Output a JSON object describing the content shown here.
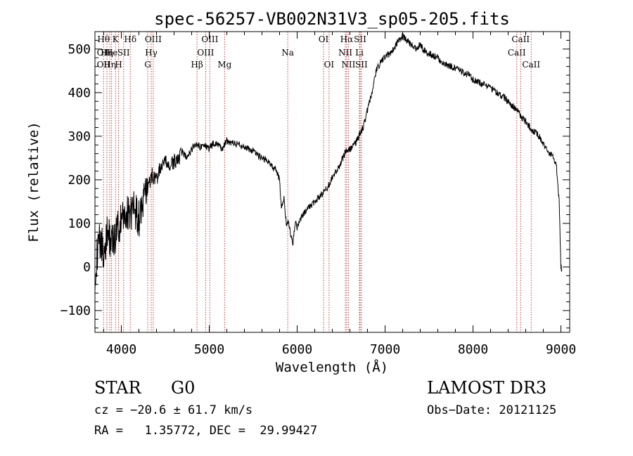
{
  "chart_data": {
    "type": "line",
    "title": "spec-56257-VB002N31V3_sp05-205.fits",
    "xlabel": "Wavelength (Å)",
    "ylabel": "Flux (relative)",
    "xlim": [
      3700,
      9100
    ],
    "ylim": [
      -150,
      540
    ],
    "xticks": [
      4000,
      5000,
      6000,
      7000,
      8000,
      9000
    ],
    "yticks": [
      -100,
      0,
      100,
      200,
      300,
      400,
      500
    ],
    "xtick_labels": [
      "4000",
      "5000",
      "6000",
      "7000",
      "8000",
      "9000"
    ],
    "ytick_labels": [
      "−100",
      "0",
      "100",
      "200",
      "300",
      "400",
      "500"
    ],
    "series": [
      {
        "name": "flux",
        "x": [
          3700,
          3750,
          3800,
          3850,
          3900,
          3950,
          4000,
          4050,
          4100,
          4150,
          4200,
          4250,
          4300,
          4350,
          4400,
          4450,
          4500,
          4550,
          4600,
          4650,
          4700,
          4750,
          4800,
          4850,
          4900,
          4950,
          5000,
          5050,
          5100,
          5150,
          5200,
          5250,
          5300,
          5350,
          5400,
          5450,
          5500,
          5550,
          5600,
          5650,
          5700,
          5750,
          5800,
          5820,
          5850,
          5880,
          5900,
          5950,
          5980,
          6000,
          6050,
          6100,
          6150,
          6200,
          6250,
          6300,
          6350,
          6400,
          6450,
          6500,
          6550,
          6600,
          6650,
          6700,
          6750,
          6800,
          6850,
          6900,
          6950,
          7000,
          7050,
          7100,
          7150,
          7200,
          7250,
          7300,
          7350,
          7400,
          7450,
          7500,
          7550,
          7600,
          7650,
          7700,
          7750,
          7800,
          7850,
          7900,
          7950,
          8000,
          8050,
          8100,
          8150,
          8200,
          8250,
          8300,
          8350,
          8400,
          8450,
          8500,
          8550,
          8600,
          8650,
          8700,
          8750,
          8800,
          8850,
          8900,
          8950,
          8980,
          9000,
          9010
        ],
        "y": [
          -10,
          60,
          40,
          80,
          50,
          90,
          100,
          120,
          130,
          130,
          110,
          150,
          180,
          210,
          200,
          230,
          240,
          230,
          240,
          250,
          260,
          250,
          270,
          285,
          275,
          280,
          270,
          285,
          280,
          270,
          290,
          285,
          282,
          280,
          275,
          270,
          265,
          255,
          250,
          245,
          235,
          225,
          200,
          140,
          160,
          90,
          105,
          50,
          110,
          90,
          115,
          130,
          140,
          150,
          160,
          170,
          185,
          205,
          220,
          240,
          265,
          270,
          280,
          300,
          320,
          360,
          400,
          450,
          470,
          480,
          490,
          500,
          520,
          530,
          520,
          510,
          500,
          510,
          495,
          490,
          485,
          480,
          470,
          465,
          460,
          455,
          450,
          445,
          440,
          430,
          425,
          420,
          415,
          410,
          405,
          395,
          390,
          380,
          370,
          360,
          345,
          335,
          320,
          310,
          300,
          280,
          265,
          255,
          230,
          150,
          0,
          -5
        ]
      }
    ],
    "lines": [
      {
        "x": 3798,
        "labels": [
          {
            "text": "Hθ",
            "row": 0
          },
          {
            "text": "OII",
            "row": 1
          },
          {
            "text": "OII",
            "row": 2
          }
        ]
      },
      {
        "x": 3836,
        "labels": [
          {
            "text": "Hη",
            "row": 1
          }
        ]
      },
      {
        "x": 3869,
        "labels": [
          {
            "text": "Hη",
            "row": 2
          }
        ]
      },
      {
        "x": 3889,
        "labels": [
          {
            "text": "He",
            "row": 1
          }
        ]
      },
      {
        "x": 3934,
        "labels": [
          {
            "text": "K",
            "row": 0
          }
        ]
      },
      {
        "x": 3969,
        "labels": [
          {
            "text": "H",
            "row": 2
          }
        ]
      },
      {
        "x": 4026,
        "labels": [
          {
            "text": "SII",
            "row": 1
          }
        ]
      },
      {
        "x": 4102,
        "labels": [
          {
            "text": "Hδ",
            "row": 0
          }
        ]
      },
      {
        "x": 4300,
        "labels": [
          {
            "text": "G",
            "row": 2
          }
        ]
      },
      {
        "x": 4340,
        "labels": [
          {
            "text": "Hγ",
            "row": 1
          }
        ]
      },
      {
        "x": 4363,
        "labels": [
          {
            "text": "OIII",
            "row": 0
          }
        ]
      },
      {
        "x": 4861,
        "labels": [
          {
            "text": "Hβ",
            "row": 2
          }
        ]
      },
      {
        "x": 4959,
        "labels": [
          {
            "text": "OIII",
            "row": 1
          }
        ]
      },
      {
        "x": 5007,
        "labels": [
          {
            "text": "OIII",
            "row": 0
          }
        ]
      },
      {
        "x": 5175,
        "labels": [
          {
            "text": "Mg",
            "row": 2
          }
        ]
      },
      {
        "x": 5893,
        "labels": [
          {
            "text": "Na",
            "row": 1
          }
        ]
      },
      {
        "x": 6300,
        "labels": [
          {
            "text": "OI",
            "row": 0
          }
        ]
      },
      {
        "x": 6363,
        "labels": [
          {
            "text": "OI",
            "row": 2
          }
        ]
      },
      {
        "x": 6548,
        "labels": [
          {
            "text": "NII",
            "row": 1
          }
        ]
      },
      {
        "x": 6563,
        "labels": [
          {
            "text": "Hα",
            "row": 0
          }
        ]
      },
      {
        "x": 6583,
        "labels": [
          {
            "text": "NII",
            "row": 2
          }
        ]
      },
      {
        "x": 6708,
        "labels": [
          {
            "text": "Li",
            "row": 1
          }
        ]
      },
      {
        "x": 6716,
        "labels": [
          {
            "text": "SII",
            "row": 0
          }
        ]
      },
      {
        "x": 6731,
        "labels": [
          {
            "text": "SII",
            "row": 2
          }
        ]
      },
      {
        "x": 8498,
        "labels": [
          {
            "text": "CaII",
            "row": 1
          }
        ]
      },
      {
        "x": 8542,
        "labels": [
          {
            "text": "CaII",
            "row": 0
          }
        ]
      },
      {
        "x": 8662,
        "labels": [
          {
            "text": "CaII",
            "row": 2
          }
        ]
      }
    ]
  },
  "info": {
    "object_class": "STAR",
    "subclass": "G0",
    "survey": "LAMOST DR3",
    "redshift": "cz = −20.6 ± 61.7 km/s",
    "obs_date": "Obs−Date: 20121125",
    "coords": "RA =   1.35772, DEC =  29.99427"
  }
}
